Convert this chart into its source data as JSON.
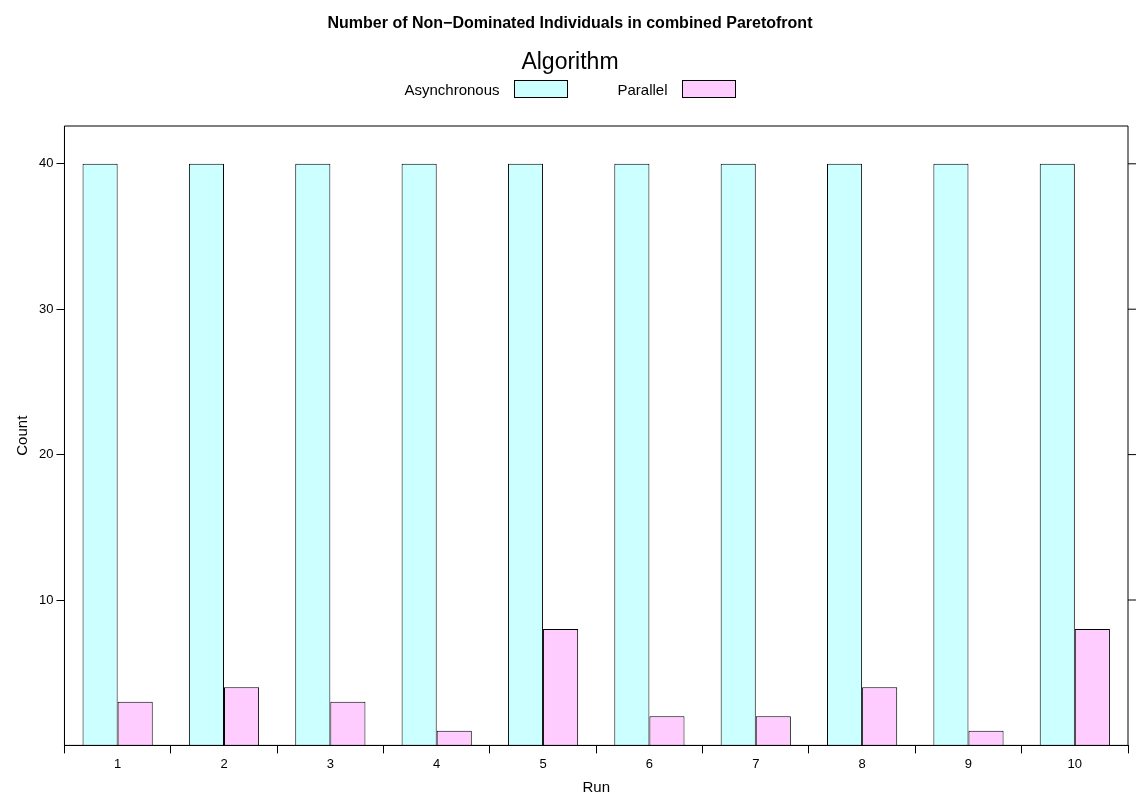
{
  "chart_data": {
    "type": "bar",
    "title": "Number of Non−Dominated Individuals in combined Paretofront",
    "legend_title": "Algorithm",
    "xlabel": "Run",
    "ylabel": "Count",
    "categories": [
      "1",
      "2",
      "3",
      "4",
      "5",
      "6",
      "7",
      "8",
      "9",
      "10"
    ],
    "series": [
      {
        "name": "Asynchronous",
        "color": "#ccffff",
        "values": [
          40,
          40,
          40,
          40,
          40,
          40,
          40,
          40,
          40,
          40
        ]
      },
      {
        "name": "Parallel",
        "color": "#ffccff",
        "values": [
          3,
          4,
          3,
          1,
          8,
          2,
          2,
          4,
          1,
          8
        ]
      }
    ],
    "ylim": [
      0,
      42.6
    ],
    "yticks": [
      10,
      20,
      30,
      40
    ],
    "grid": false,
    "legend": "top"
  }
}
